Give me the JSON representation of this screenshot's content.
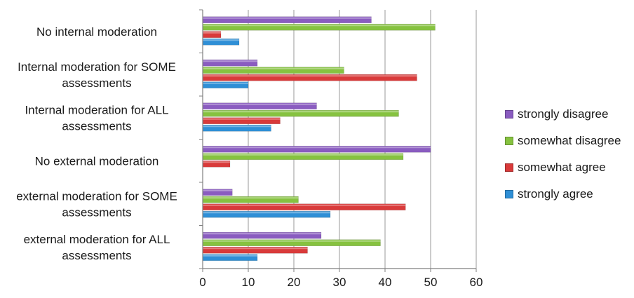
{
  "chart_data": {
    "type": "bar",
    "orientation": "horizontal",
    "categories": [
      "No internal moderation",
      "Internal moderation for SOME assessments",
      "Internal moderation for ALL assessments",
      "No external moderation",
      "external moderation for SOME assessments",
      "external moderation for ALL assessments"
    ],
    "category_lines": [
      [
        "No internal moderation"
      ],
      [
        "Internal moderation for SOME",
        "assessments"
      ],
      [
        "Internal moderation for ALL",
        "assessments"
      ],
      [
        "No external moderation"
      ],
      [
        "external moderation for SOME",
        "assessments"
      ],
      [
        "external moderation for ALL",
        "assessments"
      ]
    ],
    "series": [
      {
        "name": "strongly disagree",
        "color": "#8a5cc0",
        "values": [
          37,
          12,
          25,
          50,
          6.5,
          26
        ]
      },
      {
        "name": "somewhat disagree",
        "color": "#86c240",
        "values": [
          51,
          31,
          43,
          44,
          21,
          39
        ]
      },
      {
        "name": "somewhat agree",
        "color": "#d93a3a",
        "values": [
          4,
          47,
          17,
          6,
          44.5,
          23
        ]
      },
      {
        "name": "strongly agree",
        "color": "#2f8fd6",
        "values": [
          8,
          10,
          15,
          0,
          28,
          12
        ]
      }
    ],
    "xlim": [
      0,
      60
    ],
    "xticks": [
      0,
      10,
      20,
      30,
      40,
      50,
      60
    ],
    "grid": "vertical",
    "legend_position": "right",
    "title": "",
    "xlabel": "",
    "ylabel": ""
  }
}
